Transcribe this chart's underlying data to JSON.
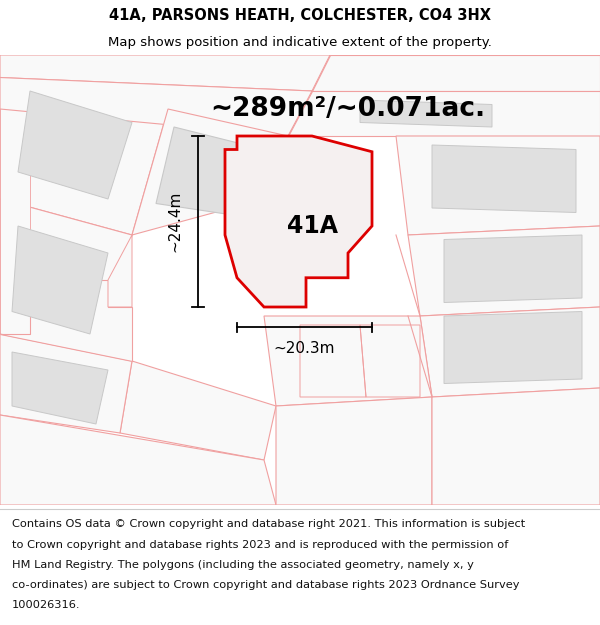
{
  "title_line1": "41A, PARSONS HEATH, COLCHESTER, CO4 3HX",
  "title_line2": "Map shows position and indicative extent of the property.",
  "area_label": "~289m²/~0.071ac.",
  "plot_label": "41A",
  "dim_height": "~24.4m",
  "dim_width": "~20.3m",
  "footer_lines": [
    "Contains OS data © Crown copyright and database right 2021. This information is subject",
    "to Crown copyright and database rights 2023 and is reproduced with the permission of",
    "HM Land Registry. The polygons (including the associated geometry, namely x, y",
    "co-ordinates) are subject to Crown copyright and database rights 2023 Ordnance Survey",
    "100026316."
  ],
  "bg_color": "#ffffff",
  "map_bg": "#ffffff",
  "plot_outline_color": "#f0a0a0",
  "highlight_color": "#dd0000",
  "building_fill": "#e0e0e0",
  "building_outline": "#c8c8c8",
  "title_fontsize": 10.5,
  "subtitle_fontsize": 9.5,
  "area_fontsize": 19,
  "label_fontsize": 17,
  "dim_fontsize": 11,
  "footer_fontsize": 8.2
}
